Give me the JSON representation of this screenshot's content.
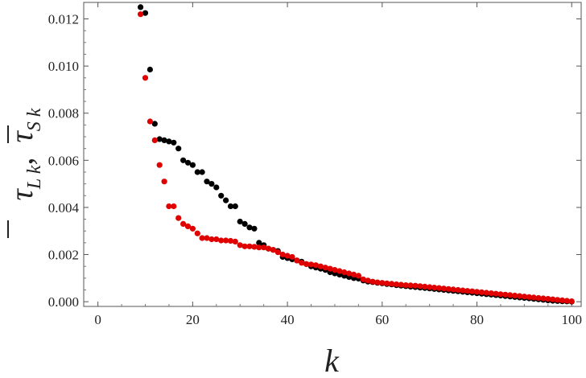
{
  "chart_data": {
    "type": "scatter",
    "xlabel": "k",
    "ylabel": "τ̄Lk,  τ̄Sk",
    "xlim": [
      -3,
      102
    ],
    "ylim": [
      -0.0002,
      0.0127
    ],
    "x_ticks": [
      "0",
      "20",
      "40",
      "60",
      "80",
      "100"
    ],
    "x_tick_values": [
      0,
      20,
      40,
      60,
      80,
      100
    ],
    "y_ticks": [
      "0.000",
      "0.002",
      "0.004",
      "0.006",
      "0.008",
      "0.010",
      "0.012"
    ],
    "y_tick_values": [
      0,
      0.002,
      0.004,
      0.006,
      0.008,
      0.01,
      0.012
    ],
    "grid": false,
    "frame": true,
    "series": [
      {
        "color": "#000000",
        "points": [
          [
            9,
            0.0125
          ],
          [
            10,
            0.01225
          ],
          [
            11,
            0.00985
          ],
          [
            12,
            0.00755
          ],
          [
            13,
            0.0069
          ],
          [
            14,
            0.00685
          ],
          [
            15,
            0.0068
          ],
          [
            16,
            0.00675
          ],
          [
            17,
            0.0065
          ],
          [
            18,
            0.006
          ],
          [
            19,
            0.0059
          ],
          [
            20,
            0.0058
          ],
          [
            21,
            0.0055
          ],
          [
            22,
            0.0055
          ],
          [
            23,
            0.0051
          ],
          [
            24,
            0.005
          ],
          [
            25,
            0.00485
          ],
          [
            26,
            0.0045
          ],
          [
            27,
            0.0043
          ],
          [
            28,
            0.00405
          ],
          [
            29,
            0.00405
          ],
          [
            30,
            0.0034
          ],
          [
            31,
            0.0033
          ],
          [
            32,
            0.00315
          ],
          [
            33,
            0.0031
          ],
          [
            34,
            0.0025
          ],
          [
            35,
            0.0024
          ],
          [
            36,
            0.00225
          ],
          [
            37,
            0.0022
          ],
          [
            38,
            0.00215
          ],
          [
            39,
            0.0019
          ],
          [
            40,
            0.00185
          ],
          [
            41,
            0.0018
          ],
          [
            42,
            0.00175
          ],
          [
            43,
            0.0017
          ],
          [
            44,
            0.0016
          ],
          [
            45,
            0.0015
          ],
          [
            46,
            0.00145
          ],
          [
            47,
            0.0014
          ],
          [
            48,
            0.00135
          ],
          [
            49,
            0.00125
          ],
          [
            50,
            0.0012
          ],
          [
            51,
            0.00115
          ],
          [
            52,
            0.0011
          ],
          [
            53,
            0.00105
          ],
          [
            54,
            0.001
          ],
          [
            55,
            0.00098
          ],
          [
            56,
            0.0009
          ],
          [
            57,
            0.00085
          ],
          [
            58,
            0.00083
          ],
          [
            59,
            0.0008
          ],
          [
            60,
            0.00078
          ],
          [
            61,
            0.00075
          ],
          [
            62,
            0.00073
          ],
          [
            63,
            0.0007
          ],
          [
            64,
            0.00068
          ],
          [
            65,
            0.00066
          ],
          [
            66,
            0.00064
          ],
          [
            67,
            0.00062
          ],
          [
            68,
            0.0006
          ],
          [
            69,
            0.00058
          ],
          [
            70,
            0.00056
          ],
          [
            71,
            0.00054
          ],
          [
            72,
            0.00052
          ],
          [
            73,
            0.0005
          ],
          [
            74,
            0.00048
          ],
          [
            75,
            0.00046
          ],
          [
            76,
            0.00044
          ],
          [
            77,
            0.00042
          ],
          [
            78,
            0.0004
          ],
          [
            79,
            0.00038
          ],
          [
            80,
            0.00036
          ],
          [
            81,
            0.00034
          ],
          [
            82,
            0.00032
          ],
          [
            83,
            0.0003
          ],
          [
            84,
            0.00028
          ],
          [
            85,
            0.00026
          ],
          [
            86,
            0.00024
          ],
          [
            87,
            0.00022
          ],
          [
            88,
            0.0002
          ],
          [
            89,
            0.00018
          ],
          [
            90,
            0.00016
          ],
          [
            91,
            0.00014
          ],
          [
            92,
            0.00012
          ],
          [
            93,
            0.0001
          ],
          [
            94,
            8e-05
          ],
          [
            95,
            6e-05
          ],
          [
            96,
            4e-05
          ],
          [
            97,
            3e-05
          ],
          [
            98,
            2e-05
          ],
          [
            99,
            1e-05
          ],
          [
            100,
            0.0
          ]
        ]
      },
      {
        "color": "#e00000",
        "points": [
          [
            9,
            0.0122
          ],
          [
            10,
            0.0095
          ],
          [
            11,
            0.00765
          ],
          [
            12,
            0.00685
          ],
          [
            13,
            0.0058
          ],
          [
            14,
            0.0051
          ],
          [
            15,
            0.00405
          ],
          [
            16,
            0.00405
          ],
          [
            17,
            0.00355
          ],
          [
            18,
            0.0033
          ],
          [
            19,
            0.0032
          ],
          [
            20,
            0.0031
          ],
          [
            21,
            0.0029
          ],
          [
            22,
            0.0027
          ],
          [
            23,
            0.0027
          ],
          [
            24,
            0.00265
          ],
          [
            25,
            0.00265
          ],
          [
            26,
            0.0026
          ],
          [
            27,
            0.0026
          ],
          [
            28,
            0.00258
          ],
          [
            29,
            0.00255
          ],
          [
            30,
            0.0024
          ],
          [
            31,
            0.00235
          ],
          [
            32,
            0.00235
          ],
          [
            33,
            0.00233
          ],
          [
            34,
            0.0023
          ],
          [
            35,
            0.0023
          ],
          [
            36,
            0.00225
          ],
          [
            37,
            0.0022
          ],
          [
            38,
            0.0021
          ],
          [
            39,
            0.002
          ],
          [
            40,
            0.00195
          ],
          [
            41,
            0.0019
          ],
          [
            42,
            0.00175
          ],
          [
            43,
            0.00165
          ],
          [
            44,
            0.0016
          ],
          [
            45,
            0.00158
          ],
          [
            46,
            0.00155
          ],
          [
            47,
            0.0015
          ],
          [
            48,
            0.00145
          ],
          [
            49,
            0.0014
          ],
          [
            50,
            0.00135
          ],
          [
            51,
            0.0013
          ],
          [
            52,
            0.00125
          ],
          [
            53,
            0.0012
          ],
          [
            54,
            0.00115
          ],
          [
            55,
            0.0011
          ],
          [
            56,
            0.00095
          ],
          [
            57,
            0.0009
          ],
          [
            58,
            0.00085
          ],
          [
            59,
            0.00082
          ],
          [
            60,
            0.0008
          ],
          [
            61,
            0.00078
          ],
          [
            62,
            0.00076
          ],
          [
            63,
            0.00074
          ],
          [
            64,
            0.00072
          ],
          [
            65,
            0.0007
          ],
          [
            66,
            0.00069
          ],
          [
            67,
            0.00068
          ],
          [
            68,
            0.00066
          ],
          [
            69,
            0.00064
          ],
          [
            70,
            0.00062
          ],
          [
            71,
            0.0006
          ],
          [
            72,
            0.00058
          ],
          [
            73,
            0.00056
          ],
          [
            74,
            0.00054
          ],
          [
            75,
            0.00052
          ],
          [
            76,
            0.0005
          ],
          [
            77,
            0.00048
          ],
          [
            78,
            0.00046
          ],
          [
            79,
            0.00044
          ],
          [
            80,
            0.00042
          ],
          [
            81,
            0.0004
          ],
          [
            82,
            0.00038
          ],
          [
            83,
            0.00036
          ],
          [
            84,
            0.00034
          ],
          [
            85,
            0.00032
          ],
          [
            86,
            0.0003
          ],
          [
            87,
            0.00028
          ],
          [
            88,
            0.00026
          ],
          [
            89,
            0.00024
          ],
          [
            90,
            0.00022
          ],
          [
            91,
            0.0002
          ],
          [
            92,
            0.00018
          ],
          [
            93,
            0.00016
          ],
          [
            94,
            0.00014
          ],
          [
            95,
            0.00012
          ],
          [
            96,
            0.0001
          ],
          [
            97,
            8e-05
          ],
          [
            98,
            6e-05
          ],
          [
            99,
            4e-05
          ],
          [
            100,
            2e-05
          ]
        ]
      }
    ]
  },
  "axis_titles": {
    "x": "k",
    "y_part1_symbol": "τ",
    "y_part1_sub": "L k",
    "y_sep": ",",
    "y_part2_symbol": "τ",
    "y_part2_sub": "S k"
  }
}
